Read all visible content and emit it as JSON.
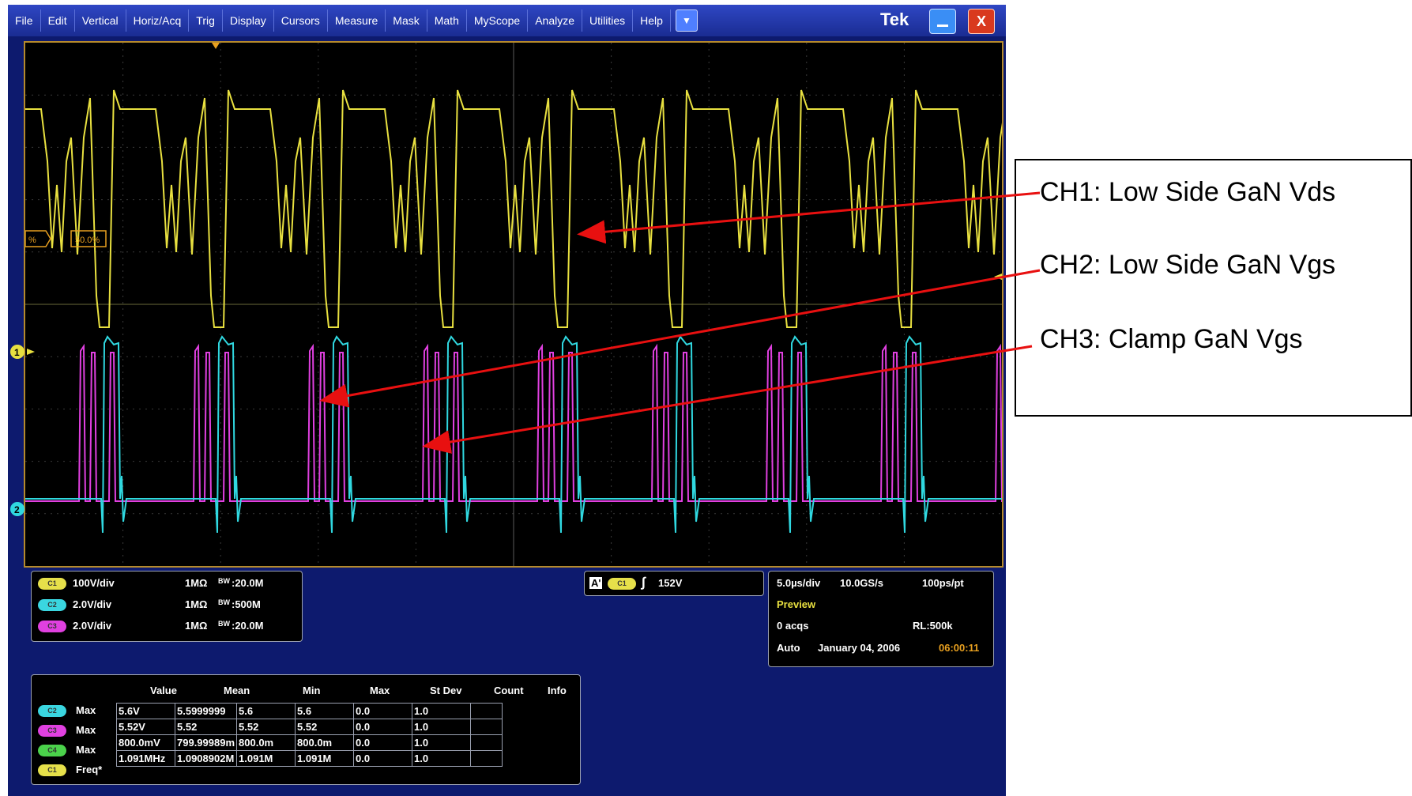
{
  "menu": {
    "items": [
      "File",
      "Edit",
      "Vertical",
      "Horiz/Acq",
      "Trig",
      "Display",
      "Cursors",
      "Measure",
      "Mask",
      "Math",
      "MyScope",
      "Analyze",
      "Utilities",
      "Help"
    ],
    "brand": "Tek"
  },
  "graticule": {
    "trigger_label": "50.0%",
    "trigger_left_label": "%",
    "ch1_marker": "1",
    "ch2_marker": "2",
    "colors": {
      "ch1": "#e8e040",
      "ch2": "#30d8e0",
      "ch3": "#e040e0"
    }
  },
  "channels": [
    {
      "badge": "C1",
      "scale": "100V/div",
      "coupling": "1MΩ",
      "bw_label": "BW",
      "bw_value": ":20.0M"
    },
    {
      "badge": "C2",
      "scale": "2.0V/div",
      "coupling": "1MΩ",
      "bw_label": "BW",
      "bw_value": ":500M"
    },
    {
      "badge": "C3",
      "scale": "2.0V/div",
      "coupling": "1MΩ",
      "bw_label": "BW",
      "bw_value": ":20.0M"
    }
  ],
  "trigger": {
    "mode": "A'",
    "source": "C1",
    "level": "152V"
  },
  "acquisition": {
    "time_div": "5.0µs/div",
    "sample_rate": "10.0GS/s",
    "resolution": "100ps/pt",
    "status": "Preview",
    "acqs": "0 acqs",
    "record_length": "RL:500k",
    "trigger_mode": "Auto",
    "date": "January 04, 2006",
    "time": "06:00:11"
  },
  "measurements": {
    "headers": [
      "Value",
      "Mean",
      "Min",
      "Max",
      "St Dev",
      "Count",
      "Info"
    ],
    "rows": [
      {
        "badge": "C2",
        "name": "Max",
        "cells": [
          "5.6V",
          "5.5999999",
          "5.6",
          "5.6",
          "0.0",
          "1.0",
          ""
        ]
      },
      {
        "badge": "C3",
        "name": "Max",
        "cells": [
          "5.52V",
          "5.52",
          "5.52",
          "5.52",
          "0.0",
          "1.0",
          ""
        ]
      },
      {
        "badge": "C4",
        "name": "Max",
        "cells": [
          "800.0mV",
          "799.99989m",
          "800.0m",
          "800.0m",
          "0.0",
          "1.0",
          ""
        ]
      },
      {
        "badge": "C1",
        "name": "Freq*",
        "cells": [
          "1.091MHz",
          "1.0908902M",
          "1.091M",
          "1.091M",
          "0.0",
          "1.0",
          ""
        ]
      }
    ]
  },
  "annotations": {
    "ch1": "CH1: Low Side GaN Vds",
    "ch2": "CH2: Low Side GaN Vgs",
    "ch3": "CH3: Clamp GaN Vgs"
  }
}
